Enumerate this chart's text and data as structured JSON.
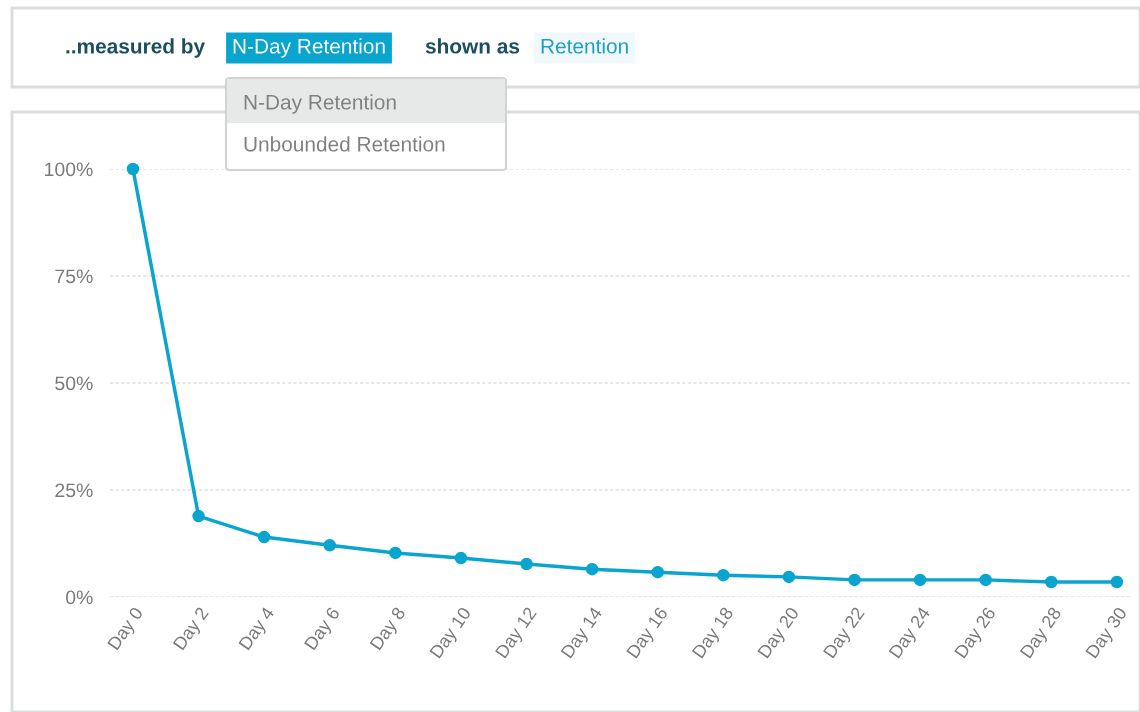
{
  "chart_data": {
    "type": "line",
    "annotations": [
      "..measured by",
      "N-Day Retention",
      "shown as",
      "Retention",
      "N-Day Retention",
      "Unbounded Retention"
    ],
    "categories": [
      "Day 0",
      "Day 2",
      "Day 4",
      "Day 6",
      "Day 8",
      "Day 10",
      "Day 12",
      "Day 14",
      "Day 16",
      "Day 18",
      "Day 20",
      "Day 22",
      "Day 24",
      "Day 26",
      "Day 28",
      "Day 30"
    ],
    "series": [
      {
        "color": "#0aa5cf",
        "values": [
          100,
          18.9,
          14.0,
          12.1,
          10.3,
          9.1,
          7.7,
          6.5,
          5.8,
          5.1,
          4.7,
          4.0,
          4.0,
          4.0,
          3.5,
          3.5
        ]
      }
    ],
    "ylim": [
      0,
      100
    ],
    "yticks": [
      {
        "value": 0,
        "label": "0%"
      },
      {
        "value": 25,
        "label": "25%"
      },
      {
        "value": 50,
        "label": "50%"
      },
      {
        "value": 75,
        "label": "75%"
      },
      {
        "value": 100,
        "label": "100%"
      }
    ],
    "grid": "y",
    "marker": "circle",
    "line_style": "solid",
    "legend": false
  }
}
